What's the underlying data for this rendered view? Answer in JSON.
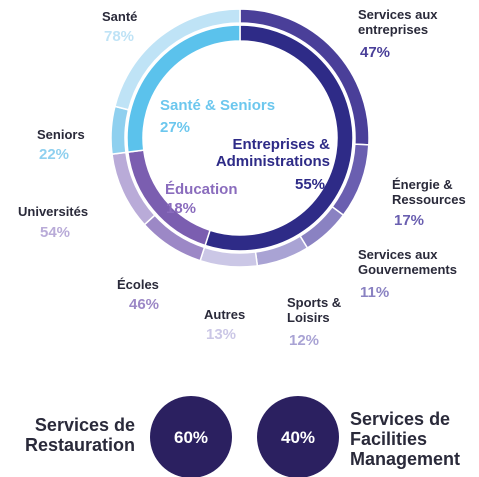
{
  "chart_data": [
    {
      "type": "sunburst",
      "inner": {
        "categories": [
          "Entreprises & Administrations",
          "Éducation",
          "Santé & Seniors"
        ],
        "values": [
          55,
          18,
          27
        ],
        "value_labels": [
          "55%",
          "18%",
          "27%"
        ],
        "colors": [
          "#2e2b87",
          "#7b5eb0",
          "#5bc2ec"
        ]
      },
      "outer": {
        "categories": [
          "Services aux entreprises",
          "Énergie & Ressources",
          "Services aux Gouvernements",
          "Sports & Loisirs",
          "Autres",
          "Écoles",
          "Universités",
          "Seniors",
          "Santé"
        ],
        "values": [
          47,
          17,
          11,
          12,
          13,
          46,
          54,
          22,
          78
        ],
        "value_labels": [
          "47%",
          "17%",
          "11%",
          "12%",
          "13%",
          "46%",
          "54%",
          "22%",
          "78%"
        ],
        "parents": [
          0,
          0,
          0,
          0,
          0,
          1,
          1,
          2,
          2
        ],
        "colors": [
          "#4a3f99",
          "#6a5fb0",
          "#8a82c2",
          "#a9a3d4",
          "#cbc7e6",
          "#9c88c6",
          "#b9abd8",
          "#8fd0ef",
          "#bfe3f6"
        ]
      }
    },
    {
      "type": "circles",
      "categories": [
        "Services de Restauration",
        "Services de Facilities Management"
      ],
      "values": [
        60,
        40
      ],
      "value_labels": [
        "60%",
        "40%"
      ],
      "color": "#2b2060"
    }
  ]
}
